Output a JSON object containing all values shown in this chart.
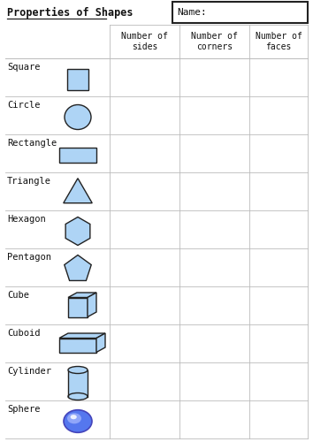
{
  "title": "Properties of Shapes",
  "name_label": "Name:",
  "col_headers": [
    "Number of\nsides",
    "Number of\ncorners",
    "Number of\nfaces"
  ],
  "shapes": [
    "Square",
    "Circle",
    "Rectangle",
    "Triangle",
    "Hexagon",
    "Pentagon",
    "Cube",
    "Cuboid",
    "Cylinder",
    "Sphere"
  ],
  "bg_color": "#ffffff",
  "fill_color": "#aed4f5",
  "stroke_color": "#222222",
  "grid_color": "#bbbbbb",
  "title_color": "#111111",
  "font_color": "#111111",
  "figsize": [
    3.54,
    5.0
  ],
  "dpi": 100
}
